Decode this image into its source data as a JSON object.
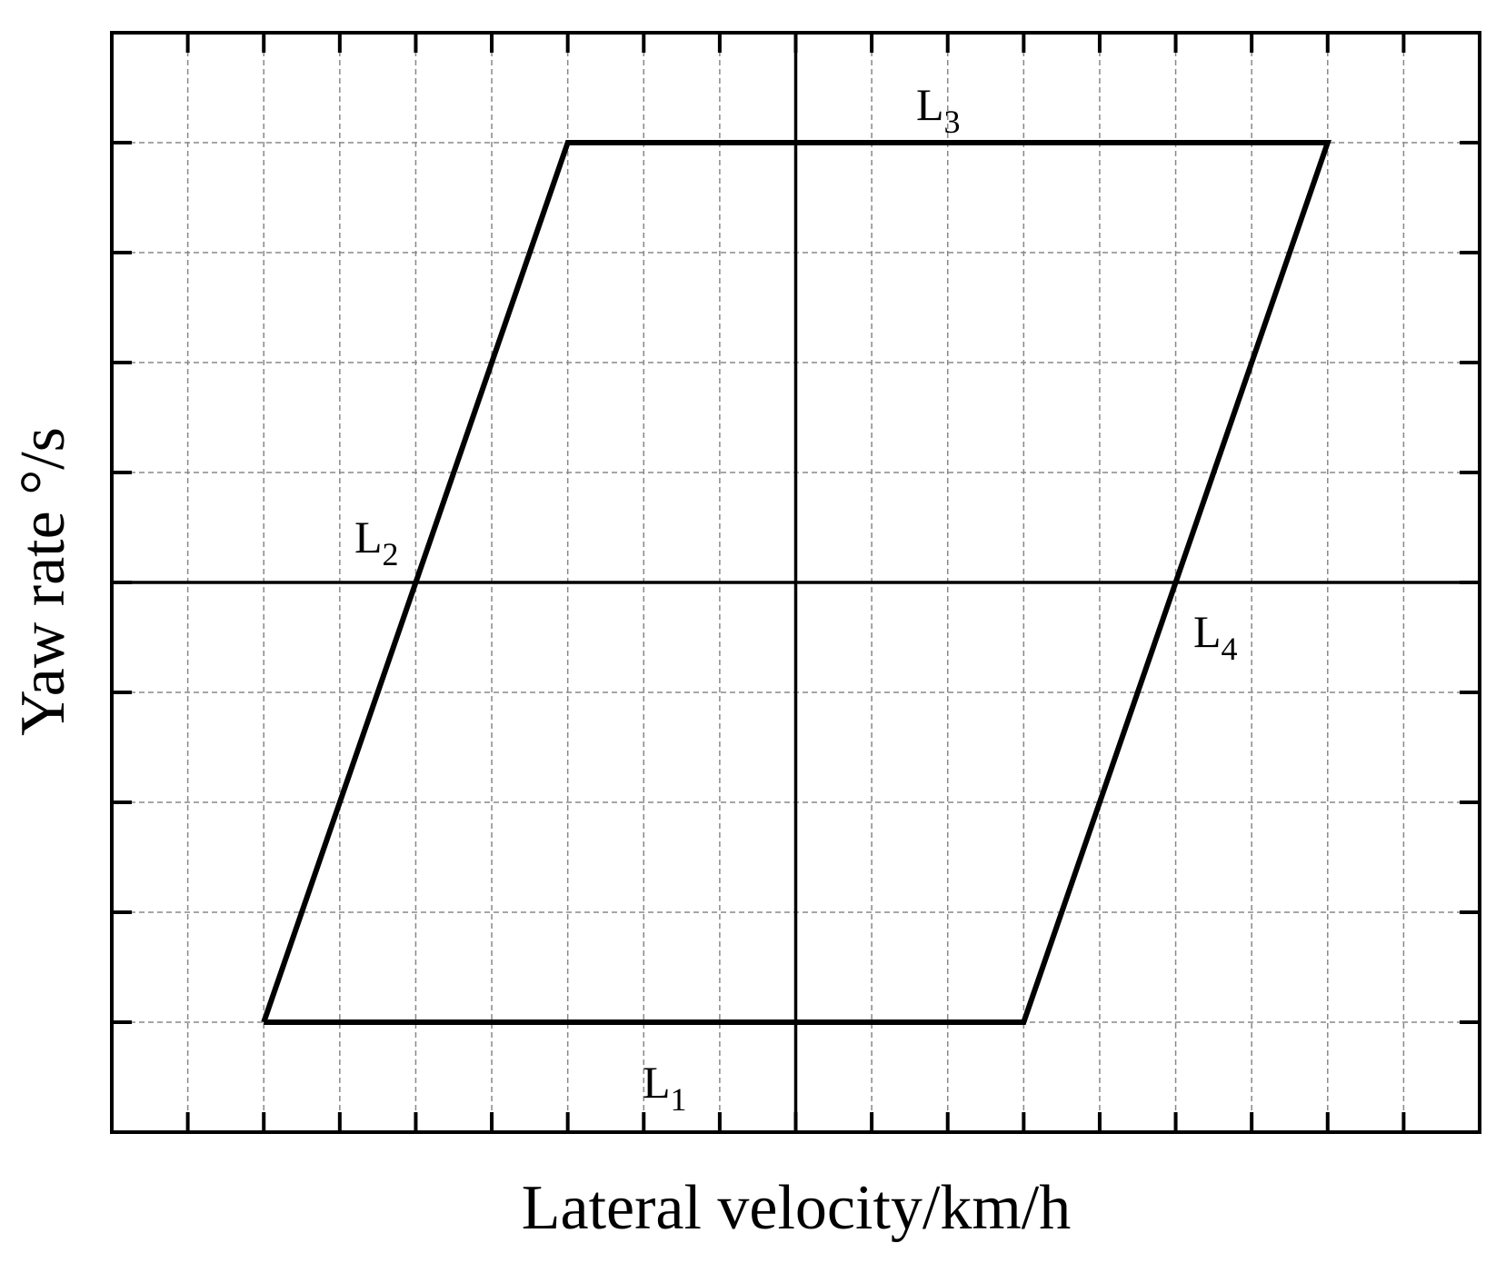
{
  "chart_data": {
    "type": "line",
    "xlabel": "Lateral velocity/km/h",
    "ylabel": "Yaw rate °/s",
    "x": [
      -7,
      -3,
      7,
      3,
      -7
    ],
    "series": [
      {
        "color": "#000000",
        "values": [
          -4,
          4,
          4,
          -4,
          -4
        ]
      }
    ],
    "xlim": [
      -9,
      9
    ],
    "ylim": [
      -5,
      5
    ],
    "xticks": [
      -8,
      -7,
      -6,
      -5,
      -4,
      -3,
      -2,
      -1,
      0,
      1,
      2,
      3,
      4,
      5,
      6,
      7,
      8
    ],
    "yticks": [
      -4,
      -3,
      -2,
      -1,
      0,
      1,
      2,
      3,
      4
    ],
    "grid": true,
    "annotations": [
      {
        "text": "L",
        "subscript": "1"
      },
      {
        "text": "L",
        "subscript": "2"
      },
      {
        "text": "L",
        "subscript": "3"
      },
      {
        "text": "L",
        "subscript": "4"
      }
    ]
  }
}
